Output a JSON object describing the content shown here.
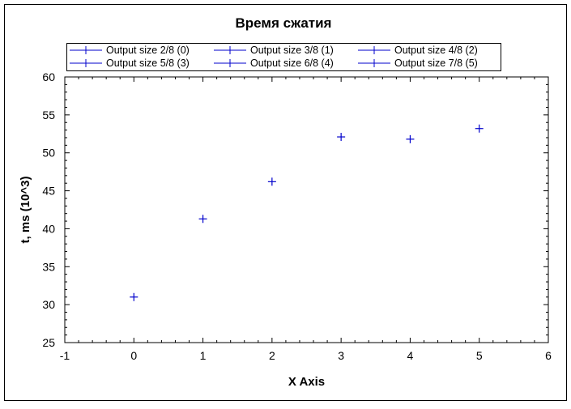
{
  "chart_data": {
    "type": "scatter",
    "title": "Время сжатия",
    "xlabel": "X Axis",
    "ylabel": "t, ms (10^3)",
    "xlim": [
      -1,
      6
    ],
    "ylim": [
      25,
      60
    ],
    "xticks": [
      "-1",
      "0",
      "1",
      "2",
      "3",
      "4",
      "5",
      "6"
    ],
    "yticks": [
      "25",
      "30",
      "35",
      "40",
      "45",
      "50",
      "55",
      "60"
    ],
    "grid": false,
    "legend_position": "top",
    "marker_color": "#0000cc",
    "series": [
      {
        "name": "Output size 2/8 (0)",
        "x": [
          0
        ],
        "y": [
          31.0
        ]
      },
      {
        "name": "Output size 3/8 (1)",
        "x": [
          1
        ],
        "y": [
          41.3
        ]
      },
      {
        "name": "Output size 4/8 (2)",
        "x": [
          2
        ],
        "y": [
          46.2
        ]
      },
      {
        "name": "Output size 5/8 (3)",
        "x": [
          3
        ],
        "y": [
          52.1
        ]
      },
      {
        "name": "Output size 6/8 (4)",
        "x": [
          4
        ],
        "y": [
          51.8
        ]
      },
      {
        "name": "Output size 7/8 (5)",
        "x": [
          5
        ],
        "y": [
          53.2
        ]
      }
    ]
  }
}
